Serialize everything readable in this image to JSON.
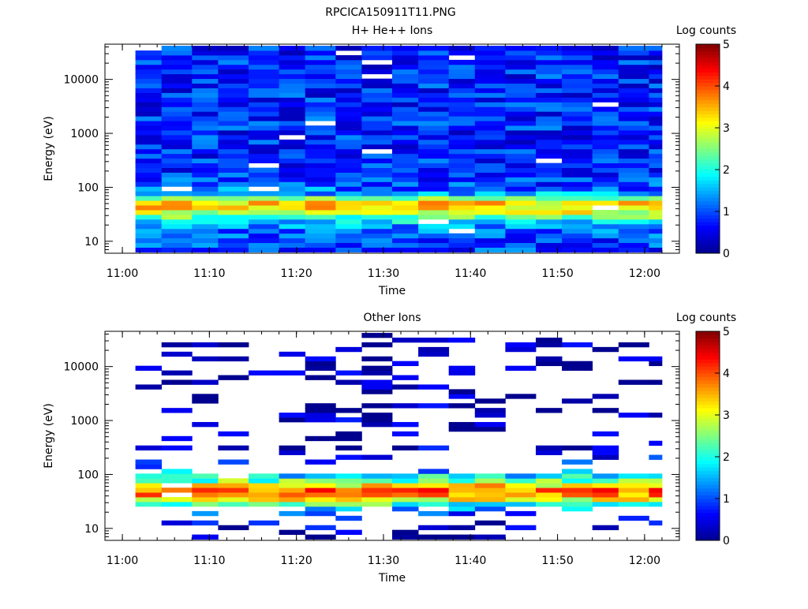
{
  "figure_title": "RPCICA150911T11.PNG",
  "colors": {
    "jet": [
      "#00008f",
      "#0000ff",
      "#0080ff",
      "#00ffff",
      "#80ff80",
      "#ffff00",
      "#ff8000",
      "#ff0000",
      "#800000"
    ],
    "background": "#ffffff",
    "axis": "#000000"
  },
  "chart_data": [
    {
      "type": "heatmap",
      "title": "H+ He++ Ions",
      "xlabel": "Time",
      "ylabel": "Energy (eV)",
      "x_scale": "time",
      "y_scale": "log",
      "xlim": [
        "10:58",
        "12:04"
      ],
      "ylim": [
        6,
        45000
      ],
      "x_ticks": [
        "11:00",
        "11:10",
        "11:20",
        "11:30",
        "11:40",
        "11:50",
        "12:00"
      ],
      "y_ticks": [
        "10",
        "100",
        "1000",
        "10000"
      ],
      "time_bins": [
        "11:01:30",
        "11:04:30",
        "11:08:00",
        "11:11:00",
        "11:14:30",
        "11:18:00",
        "11:21:00",
        "11:24:30",
        "11:27:30",
        "11:31:00",
        "11:34:00",
        "11:37:30",
        "11:40:30",
        "11:44:00",
        "11:47:30",
        "11:50:30",
        "11:54:00",
        "11:57:00",
        "12:00:30",
        "12:02:00"
      ],
      "profile": [
        {
          "e": 7,
          "v": 0.9
        },
        {
          "e": 12,
          "v": 1.0
        },
        {
          "e": 18,
          "v": 1.3
        },
        {
          "e": 24,
          "v": 1.8
        },
        {
          "e": 30,
          "v": 2.5
        },
        {
          "e": 38,
          "v": 3.2
        },
        {
          "e": 48,
          "v": 3.6
        },
        {
          "e": 60,
          "v": 2.6
        },
        {
          "e": 80,
          "v": 1.3
        },
        {
          "e": 120,
          "v": 0.9
        },
        {
          "e": 400,
          "v": 0.8
        },
        {
          "e": 4000,
          "v": 0.8
        },
        {
          "e": 40000,
          "v": 0.75
        }
      ],
      "noise": 0.55,
      "empty_fraction": 0.02,
      "colorbar": {
        "label": "Log counts",
        "min": 0,
        "max": 5,
        "ticks": [
          "0",
          "1",
          "2",
          "3",
          "4",
          "5"
        ]
      }
    },
    {
      "type": "heatmap",
      "title": "Other Ions",
      "xlabel": "Time",
      "ylabel": "Energy (eV)",
      "x_scale": "time",
      "y_scale": "log",
      "xlim": [
        "10:58",
        "12:04"
      ],
      "ylim": [
        6,
        45000
      ],
      "x_ticks": [
        "11:00",
        "11:10",
        "11:20",
        "11:30",
        "11:40",
        "11:50",
        "12:00"
      ],
      "y_ticks": [
        "10",
        "100",
        "1000",
        "10000"
      ],
      "time_bins": [
        "11:01:30",
        "11:04:30",
        "11:08:00",
        "11:11:00",
        "11:14:30",
        "11:18:00",
        "11:21:00",
        "11:24:30",
        "11:27:30",
        "11:31:00",
        "11:34:00",
        "11:37:30",
        "11:40:30",
        "11:44:00",
        "11:47:30",
        "11:50:30",
        "11:54:00",
        "11:57:00",
        "12:00:30",
        "12:02:00"
      ],
      "profile": [
        {
          "e": 7,
          "v": 0.2
        },
        {
          "e": 12,
          "v": 0.4
        },
        {
          "e": 18,
          "v": 0.9
        },
        {
          "e": 24,
          "v": 1.5
        },
        {
          "e": 30,
          "v": 2.3
        },
        {
          "e": 38,
          "v": 3.5
        },
        {
          "e": 48,
          "v": 4.1
        },
        {
          "e": 60,
          "v": 3.4
        },
        {
          "e": 80,
          "v": 2.2
        },
        {
          "e": 120,
          "v": 1.2
        },
        {
          "e": 200,
          "v": 0.6
        },
        {
          "e": 400,
          "v": 0.2
        },
        {
          "e": 40000,
          "v": 0.1
        }
      ],
      "noise": 0.6,
      "empty_fraction": 0.78,
      "colorbar": {
        "label": "Log counts",
        "min": 0,
        "max": 5,
        "ticks": [
          "0",
          "1",
          "2",
          "3",
          "4",
          "5"
        ]
      }
    }
  ]
}
